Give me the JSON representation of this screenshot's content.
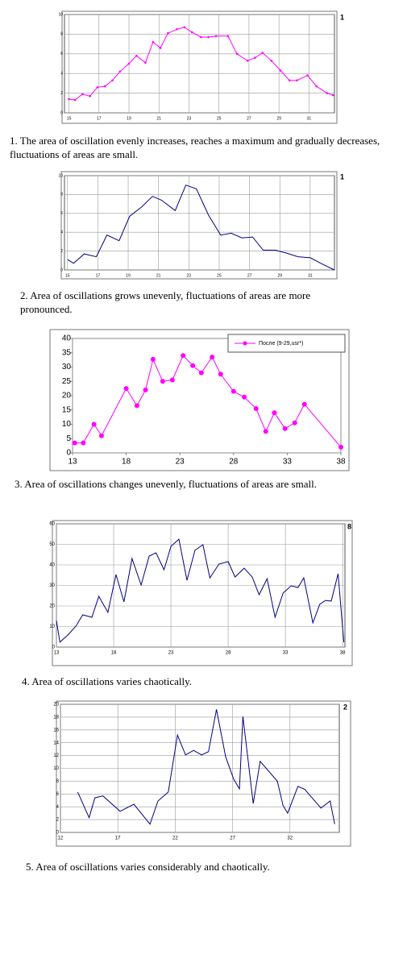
{
  "chart_data": [
    {
      "type": "line",
      "color": "#ff00ff",
      "markers": true,
      "grid": true,
      "annotation": "1",
      "caption": "1. The area of oscillation evenly increases, reaches a maximum and gradually decreases, fluctuations of areas are small.",
      "xlim": [
        14.7,
        32.7
      ],
      "xticks": [
        15,
        17,
        19,
        21,
        23,
        25,
        27,
        29,
        31
      ],
      "ylim": [
        0,
        10
      ],
      "yticks": [
        0,
        2,
        4,
        6,
        8,
        10
      ],
      "x": [
        15,
        15.4,
        15.9,
        16.4,
        16.9,
        17.4,
        17.9,
        18.4,
        19,
        19.5,
        20.1,
        20.6,
        21.1,
        21.6,
        22.2,
        22.7,
        23.2,
        23.8,
        24.3,
        24.8,
        25.6,
        26.2,
        26.9,
        27.4,
        27.9,
        28.5,
        29.1,
        29.7,
        30.2,
        30.9,
        31.5,
        32.2,
        32.6
      ],
      "values": [
        1.4,
        1.3,
        1.9,
        1.7,
        2.6,
        2.7,
        3.3,
        4.2,
        5.0,
        5.8,
        5.1,
        7.2,
        6.6,
        8.1,
        8.5,
        8.7,
        8.2,
        7.7,
        7.7,
        7.8,
        7.8,
        6.0,
        5.3,
        5.6,
        6.1,
        5.3,
        4.3,
        3.3,
        3.3,
        3.8,
        2.7,
        2.0,
        1.8
      ]
    },
    {
      "type": "line",
      "color": "#000080",
      "markers": false,
      "grid": true,
      "annotation": "1",
      "caption": "2. Area of oscillations grows unevenly, fluctuations of areas are more pronounced.",
      "xlim": [
        14.8,
        32.6
      ],
      "xticks": [
        15,
        17,
        19,
        21,
        23,
        25,
        27,
        29,
        31
      ],
      "ylim": [
        0,
        10
      ],
      "yticks": [
        0,
        2,
        4,
        6,
        8,
        10
      ],
      "x": [
        15,
        15.4,
        16.1,
        16.9,
        17.6,
        18.4,
        19.1,
        19.9,
        20.6,
        21.2,
        22.1,
        22.8,
        23.5,
        24.3,
        25.1,
        25.8,
        26.5,
        27.2,
        27.9,
        28.7,
        29.4,
        30.2,
        31,
        31.7,
        32.6
      ],
      "values": [
        1.1,
        0.7,
        1.7,
        1.4,
        3.7,
        3.1,
        5.7,
        6.7,
        7.8,
        7.4,
        6.3,
        9.0,
        8.6,
        5.8,
        3.7,
        3.9,
        3.4,
        3.5,
        2.1,
        2.1,
        1.8,
        1.4,
        1.3,
        0.7,
        0
      ]
    },
    {
      "type": "line",
      "markers": true,
      "grid": false,
      "legend": "top-right",
      "caption": "3. Area of oscillations changes unevenly, fluctuations of areas are small.",
      "xlim": [
        13,
        38
      ],
      "xticks": [
        13,
        18,
        23,
        28,
        33,
        38
      ],
      "ylim": [
        0,
        40
      ],
      "yticks": [
        0,
        5,
        10,
        15,
        20,
        25,
        30,
        35,
        40
      ],
      "x": [
        13.2,
        14,
        15,
        15.7,
        18,
        19,
        19.8,
        20.5,
        21.4,
        22.3,
        23.3,
        24.2,
        25,
        26,
        26.8,
        28,
        29,
        30.1,
        31,
        31.8,
        32.8,
        33.7,
        34.6,
        38
      ],
      "series": [
        {
          "name": "После (9-29,usr*)",
          "color": "#ff00ff",
          "values": [
            3.5,
            3.5,
            10,
            6,
            22.5,
            16.5,
            22,
            32.7,
            25,
            25.5,
            34,
            30.5,
            28,
            33.5,
            27.5,
            21.5,
            19.5,
            15.5,
            7.5,
            14,
            8.5,
            10.5,
            17,
            2
          ]
        }
      ]
    },
    {
      "type": "line",
      "color": "#000080",
      "markers": false,
      "grid": true,
      "annotation": "8",
      "caption": "4. Area of oscillations varies chaotically.",
      "xlim": [
        13,
        38.2
      ],
      "xticks": [
        13,
        18,
        23,
        28,
        33,
        38
      ],
      "ylim": [
        0,
        60
      ],
      "yticks": [
        0,
        10,
        20,
        30,
        40,
        50,
        60
      ],
      "x": [
        13,
        13.3,
        14,
        14.7,
        15.3,
        16.1,
        16.7,
        17.5,
        18.2,
        18.9,
        19.6,
        20.4,
        21.1,
        21.7,
        22.4,
        23,
        23.7,
        24.4,
        25.1,
        25.8,
        26.4,
        27.2,
        28,
        28.6,
        29.4,
        30.1,
        30.7,
        31.4,
        32.1,
        32.8,
        33.5,
        34.1,
        34.6,
        35.4,
        36,
        36.5,
        37,
        37.6,
        38.1
      ],
      "values": [
        12.9,
        2.4,
        5.9,
        10.2,
        15.7,
        14.5,
        24.7,
        16.9,
        35.3,
        22,
        43.1,
        30.2,
        44.3,
        45.9,
        37.6,
        49,
        52.5,
        32.5,
        47.1,
        49.8,
        33.7,
        40.4,
        41.6,
        34.1,
        38.4,
        34.1,
        25.5,
        33.3,
        14.5,
        26.3,
        29.8,
        29,
        33.7,
        11.8,
        20.8,
        22.7,
        22.4,
        35.7,
        2.4
      ]
    },
    {
      "type": "line",
      "color": "#000080",
      "markers": false,
      "grid": true,
      "annotation": "2",
      "caption": "5. Area of oscillations varies considerably and chaotically.",
      "xlim": [
        12,
        36.3
      ],
      "xticks": [
        12,
        17,
        22,
        27,
        32
      ],
      "ylim": [
        0,
        20
      ],
      "yticks": [
        0,
        2,
        4,
        6,
        8,
        10,
        12,
        14,
        16,
        18,
        20
      ],
      "x": [
        13.5,
        14.5,
        15,
        15.7,
        17.2,
        18.4,
        19.8,
        20.5,
        21.4,
        22.2,
        22.9,
        23.6,
        24.3,
        24.9,
        25.6,
        26.4,
        27.1,
        27.6,
        27.9,
        28.8,
        29.4,
        30.9,
        31.4,
        31.8,
        32.7,
        33.3,
        34.7,
        35.5,
        35.9
      ],
      "values": [
        6.3,
        2.3,
        5.4,
        5.7,
        3.3,
        4.4,
        1.3,
        4.9,
        6.3,
        15.2,
        12.1,
        12.8,
        12.1,
        12.6,
        19.2,
        11.8,
        8.3,
        6.8,
        18.1,
        4.5,
        11.1,
        8,
        4.2,
        3,
        7.2,
        6.7,
        3.8,
        4.9,
        1.3
      ]
    }
  ]
}
